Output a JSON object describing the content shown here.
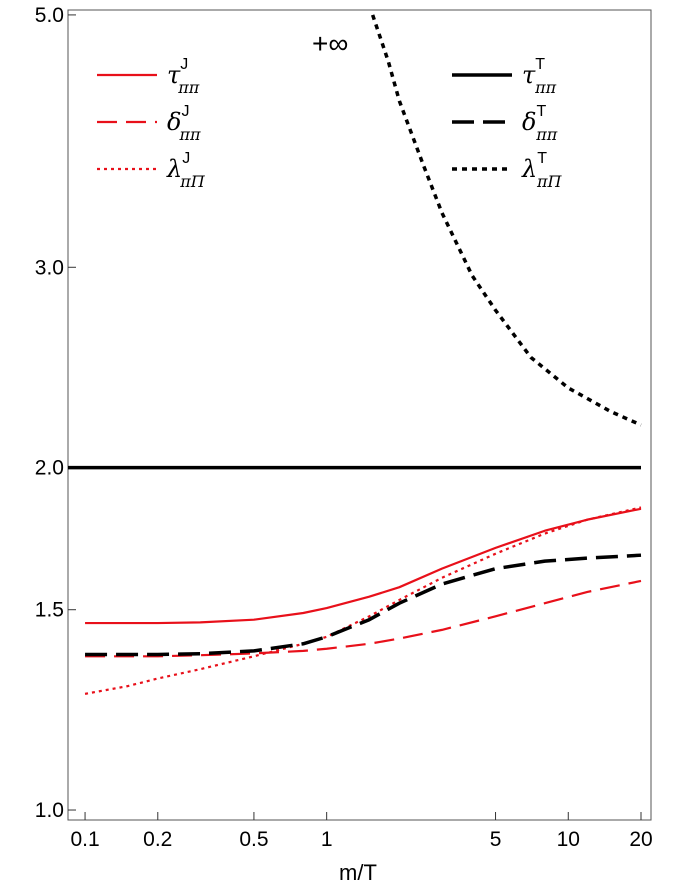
{
  "chart_data": {
    "type": "line",
    "xlabel": "m/T",
    "x_scale": "log",
    "y_scale": "log",
    "xlim": [
      0.085,
      22
    ],
    "ylim": [
      0.98,
      5.05
    ],
    "x_ticks": [
      {
        "v": 0.1,
        "label": "0.1"
      },
      {
        "v": 0.2,
        "label": "0.2"
      },
      {
        "v": 0.5,
        "label": "0.5"
      },
      {
        "v": 1,
        "label": "1"
      },
      {
        "v": 5,
        "label": "5"
      },
      {
        "v": 10,
        "label": "10"
      },
      {
        "v": 20,
        "label": "20"
      }
    ],
    "y_ticks": [
      {
        "v": 1.0,
        "label": "1.0"
      },
      {
        "v": 1.5,
        "label": "1.5"
      },
      {
        "v": 2.0,
        "label": "2.0"
      },
      {
        "v": 3.0,
        "label": "3.0"
      },
      {
        "v": 5.0,
        "label": "5.0"
      }
    ],
    "annotation": "+∞",
    "series": [
      {
        "sym": "τ",
        "sup": "J",
        "sub": "ππ",
        "color": "#e8101a",
        "dash": "solid",
        "width": 2.2,
        "points": [
          [
            0.1,
            1.46
          ],
          [
            0.2,
            1.46
          ],
          [
            0.3,
            1.462
          ],
          [
            0.5,
            1.47
          ],
          [
            0.8,
            1.49
          ],
          [
            1,
            1.505
          ],
          [
            1.5,
            1.54
          ],
          [
            2,
            1.57
          ],
          [
            3,
            1.63
          ],
          [
            5,
            1.7
          ],
          [
            8,
            1.76
          ],
          [
            12,
            1.8
          ],
          [
            20,
            1.84
          ]
        ]
      },
      {
        "sym": "δ",
        "sup": "J",
        "sub": "ππ",
        "color": "#e8101a",
        "dash": "long",
        "width": 2.2,
        "points": [
          [
            0.1,
            1.365
          ],
          [
            0.2,
            1.365
          ],
          [
            0.3,
            1.368
          ],
          [
            0.5,
            1.373
          ],
          [
            0.8,
            1.38
          ],
          [
            1,
            1.386
          ],
          [
            1.5,
            1.4
          ],
          [
            2,
            1.415
          ],
          [
            3,
            1.44
          ],
          [
            5,
            1.48
          ],
          [
            8,
            1.52
          ],
          [
            12,
            1.555
          ],
          [
            20,
            1.59
          ]
        ]
      },
      {
        "sym": "λ",
        "sup": "J",
        "sub": "πΠ",
        "color": "#e8101a",
        "dash": "dot",
        "width": 2.2,
        "points": [
          [
            0.1,
            1.265
          ],
          [
            0.15,
            1.285
          ],
          [
            0.2,
            1.305
          ],
          [
            0.3,
            1.33
          ],
          [
            0.5,
            1.365
          ],
          [
            0.8,
            1.4
          ],
          [
            1,
            1.42
          ],
          [
            1.5,
            1.48
          ],
          [
            2,
            1.53
          ],
          [
            3,
            1.6
          ],
          [
            5,
            1.68
          ],
          [
            8,
            1.75
          ],
          [
            12,
            1.8
          ],
          [
            20,
            1.845
          ]
        ]
      },
      {
        "sym": "τ",
        "sup": "T",
        "sub": "ππ",
        "color": "#000000",
        "dash": "solid",
        "width": 3.5,
        "points": [
          [
            0.085,
            2.0
          ],
          [
            20,
            2.0
          ]
        ]
      },
      {
        "sym": "δ",
        "sup": "T",
        "sub": "ππ",
        "color": "#000000",
        "dash": "long",
        "width": 3.5,
        "points": [
          [
            0.1,
            1.37
          ],
          [
            0.2,
            1.37
          ],
          [
            0.3,
            1.372
          ],
          [
            0.5,
            1.38
          ],
          [
            0.8,
            1.4
          ],
          [
            1,
            1.42
          ],
          [
            1.5,
            1.47
          ],
          [
            2,
            1.52
          ],
          [
            3,
            1.58
          ],
          [
            5,
            1.63
          ],
          [
            8,
            1.655
          ],
          [
            12,
            1.665
          ],
          [
            20,
            1.675
          ]
        ]
      },
      {
        "sym": "λ",
        "sup": "T",
        "sub": "πΠ",
        "color": "#000000",
        "dash": "dot",
        "width": 3.5,
        "points": [
          [
            1.55,
            5.0
          ],
          [
            1.8,
            4.55
          ],
          [
            2,
            4.2
          ],
          [
            2.5,
            3.7
          ],
          [
            3,
            3.35
          ],
          [
            4,
            2.95
          ],
          [
            5,
            2.75
          ],
          [
            7,
            2.5
          ],
          [
            10,
            2.35
          ],
          [
            15,
            2.24
          ],
          [
            20,
            2.18
          ]
        ]
      }
    ]
  }
}
